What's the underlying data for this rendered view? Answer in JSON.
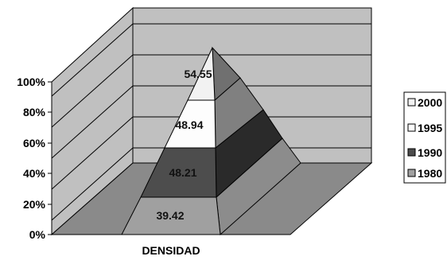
{
  "chart_data": {
    "type": "bar",
    "subtype": "3d-100%-stacked-pyramid",
    "categories": [
      "DENSIDAD"
    ],
    "series": [
      {
        "name": "1980",
        "values": [
          39.42
        ],
        "color": "#a0a0a0"
      },
      {
        "name": "1990",
        "values": [
          48.21
        ],
        "color": "#4d4d4d"
      },
      {
        "name": "1995",
        "values": [
          48.94
        ],
        "color": "#fdfdfd"
      },
      {
        "name": "2000",
        "values": [
          54.55
        ],
        "color": "#f2f2f2"
      }
    ],
    "y_ticks": [
      "0%",
      "20%",
      "40%",
      "60%",
      "80%",
      "100%"
    ],
    "ylim": [
      0,
      100
    ],
    "legend_position": "right",
    "legend_order": [
      "2000",
      "1995",
      "1990",
      "1980"
    ]
  }
}
